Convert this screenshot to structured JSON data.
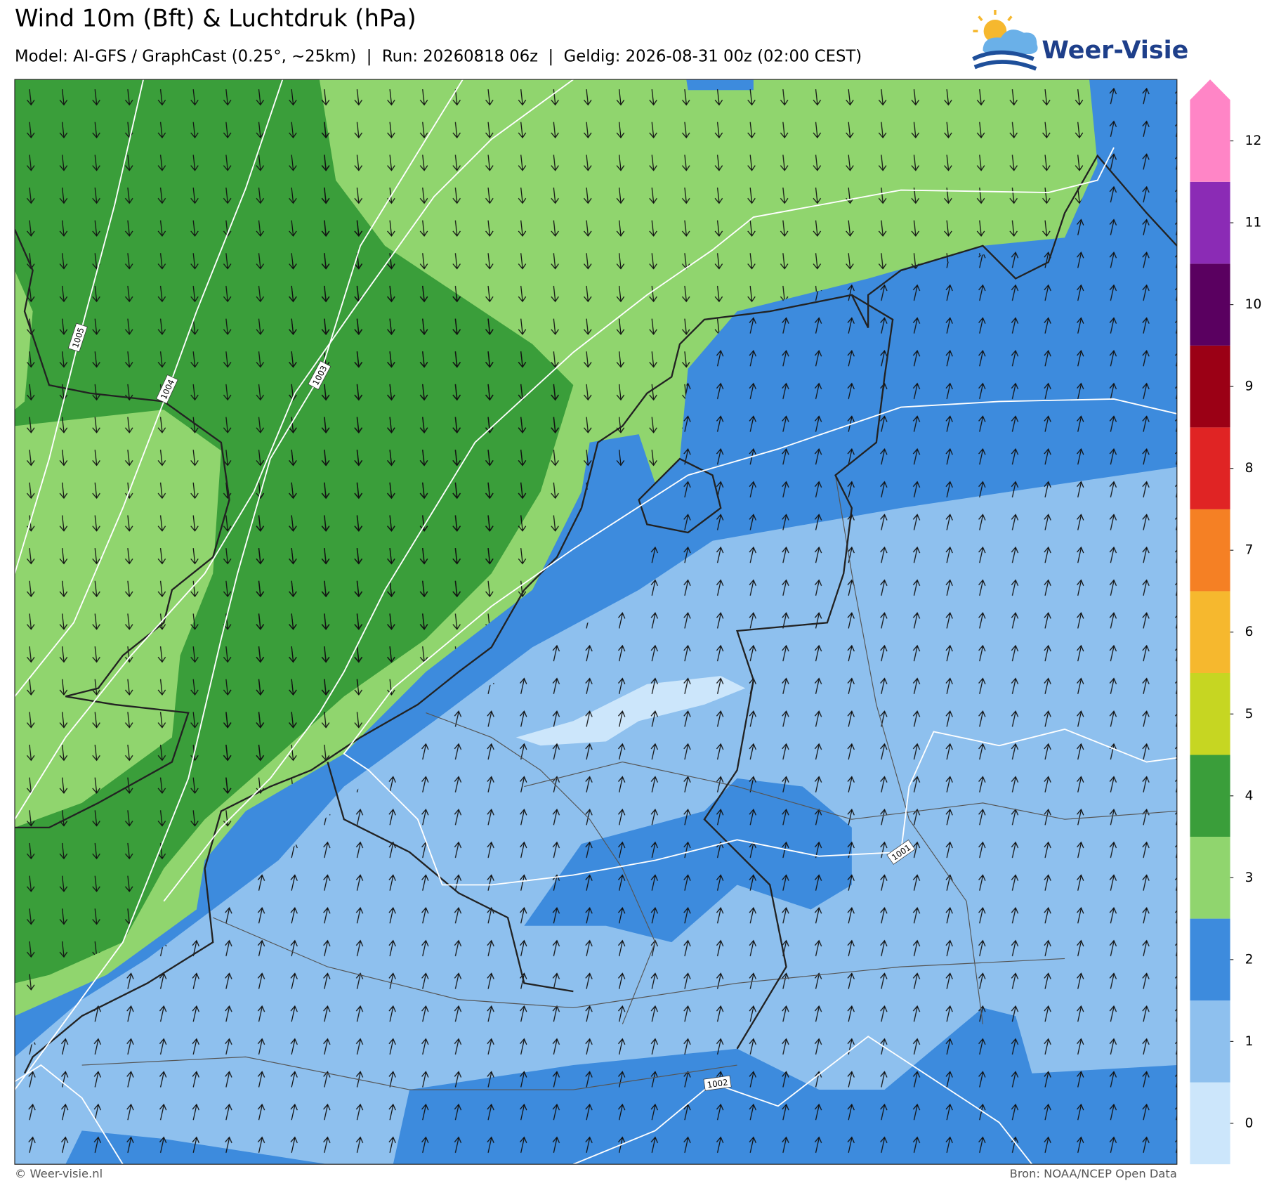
{
  "header": {
    "title": "Wind 10m (Bft) & Luchtdruk (hPa)",
    "subtitle": "Model: AI-GFS / GraphCast (0.25°, ~25km)  |  Run: 20260818 06z  |  Geldig: 2026-08-31 00z (02:00 CEST)"
  },
  "logo": {
    "text": "Weer-Visie"
  },
  "map": {
    "isobar_labels": [
      "1005",
      "1004",
      "1003",
      "1001",
      "1002"
    ]
  },
  "colorbar": {
    "levels": [
      0,
      1,
      2,
      3,
      4,
      5,
      6,
      7,
      8,
      9,
      10,
      11,
      12
    ],
    "colors": [
      "#cce6fb",
      "#8ec0ee",
      "#3d8bdd",
      "#90d56e",
      "#3a9e3a",
      "#c6d622",
      "#f6b82e",
      "#f58024",
      "#e02424",
      "#9b0015",
      "#5a0060",
      "#8b2bb5",
      "#ff85c6"
    ]
  },
  "footer": {
    "copyright": "© Weer-visie.nl",
    "source": "Bron: NOAA/NCEP Open Data"
  }
}
